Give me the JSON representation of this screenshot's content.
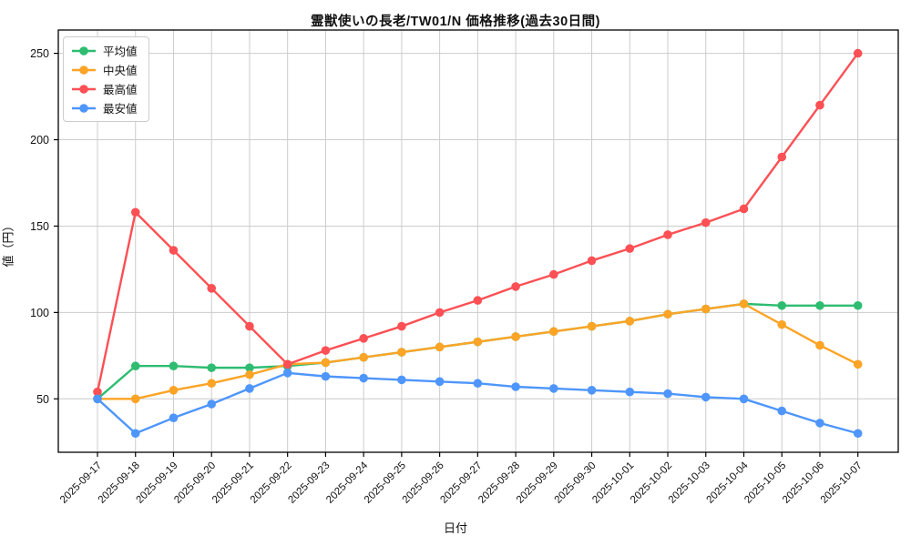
{
  "figure": {
    "title": "霊獣使いの長老/TW01/N 価格推移(過去30日間)",
    "xlabel": "日付",
    "ylabel": "値（円）"
  },
  "chart_data": {
    "type": "line",
    "title": "霊獣使いの長老/TW01/N 価格推移(過去30日間)",
    "xlabel": "日付",
    "ylabel": "値（円）",
    "grid": true,
    "legend_position": "upper-left",
    "ylim": [
      19,
      263.5
    ],
    "yticks": [
      50,
      100,
      150,
      200,
      250
    ],
    "categories": [
      "2025-09-17",
      "2025-09-18",
      "2025-09-19",
      "2025-09-20",
      "2025-09-21",
      "2025-09-22",
      "2025-09-23",
      "2025-09-24",
      "2025-09-25",
      "2025-09-26",
      "2025-09-27",
      "2025-09-28",
      "2025-09-29",
      "2025-09-30",
      "2025-10-01",
      "2025-10-02",
      "2025-10-03",
      "2025-10-04",
      "2025-10-05",
      "2025-10-06",
      "2025-10-07"
    ],
    "series": [
      {
        "id": "avg",
        "name": "平均値",
        "color": "#2ebc71",
        "values": [
          50,
          69,
          69,
          68,
          68,
          69,
          71,
          74,
          77,
          80,
          83,
          86,
          89,
          92,
          95,
          99,
          102,
          105,
          104,
          104,
          104
        ]
      },
      {
        "id": "median",
        "name": "中央値",
        "color": "#fca426",
        "values": [
          50,
          50,
          55,
          59,
          64,
          70,
          71,
          74,
          77,
          80,
          83,
          86,
          89,
          92,
          95,
          99,
          102,
          105,
          93,
          81,
          70
        ]
      },
      {
        "id": "max",
        "name": "最高値",
        "color": "#fc5055",
        "values": [
          54,
          158,
          136,
          114,
          92,
          70,
          78,
          85,
          92,
          100,
          107,
          115,
          122,
          130,
          137,
          145,
          152,
          160,
          190,
          220,
          250
        ]
      },
      {
        "id": "min",
        "name": "最安値",
        "color": "#4e96fb",
        "values": [
          50,
          30,
          39,
          47,
          56,
          65,
          63,
          62,
          61,
          60,
          59,
          57,
          56,
          55,
          54,
          53,
          51,
          50,
          43,
          36,
          30
        ]
      }
    ]
  }
}
